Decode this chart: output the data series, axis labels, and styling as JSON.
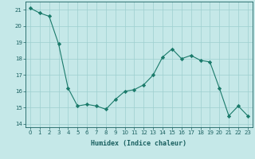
{
  "x": [
    0,
    1,
    2,
    3,
    4,
    5,
    6,
    7,
    8,
    9,
    10,
    11,
    12,
    13,
    14,
    15,
    16,
    17,
    18,
    19,
    20,
    21,
    22,
    23
  ],
  "y": [
    21.1,
    20.8,
    20.6,
    18.9,
    16.2,
    15.1,
    15.2,
    15.1,
    14.9,
    15.5,
    16.0,
    16.1,
    16.4,
    17.0,
    18.1,
    18.6,
    18.0,
    18.2,
    17.9,
    17.8,
    16.2,
    14.5,
    15.1,
    14.5
  ],
  "xlabel": "Humidex (Indice chaleur)",
  "xlim": [
    -0.5,
    23.5
  ],
  "ylim": [
    13.8,
    21.5
  ],
  "yticks": [
    14,
    15,
    16,
    17,
    18,
    19,
    20,
    21
  ],
  "xticks": [
    0,
    1,
    2,
    3,
    4,
    5,
    6,
    7,
    8,
    9,
    10,
    11,
    12,
    13,
    14,
    15,
    16,
    17,
    18,
    19,
    20,
    21,
    22,
    23
  ],
  "line_color": "#1a7a6a",
  "marker_color": "#1a7a6a",
  "bg_color": "#c5e8e8",
  "grid_color": "#9dcfcf",
  "label_color": "#1a6060",
  "tick_color": "#1a6060",
  "tick_fontsize": 5.0,
  "xlabel_fontsize": 6.0,
  "linewidth": 0.8,
  "markersize": 2.2
}
